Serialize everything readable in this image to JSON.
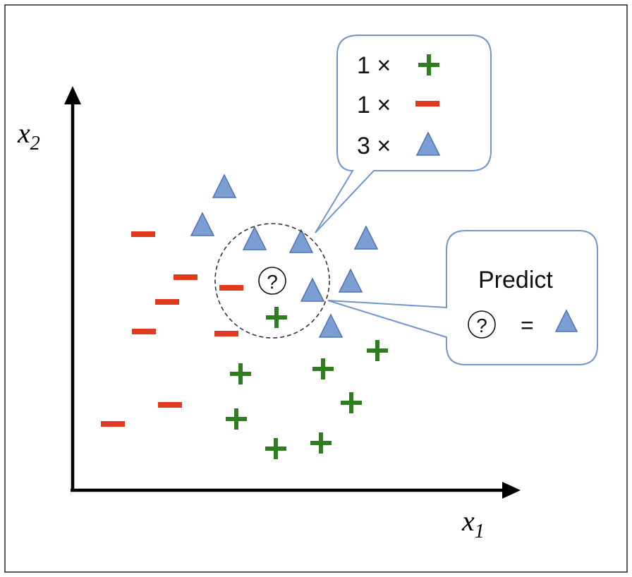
{
  "axes": {
    "x_label": "x",
    "x_subscript": "1",
    "y_label": "x",
    "y_subscript": "2"
  },
  "query_symbol": "?",
  "vote_callout": {
    "rows": [
      {
        "count": "1 ×",
        "symbol": "plus"
      },
      {
        "count": "1 ×",
        "symbol": "minus"
      },
      {
        "count": "3 ×",
        "symbol": "triangle"
      }
    ]
  },
  "predict_callout": {
    "title": "Predict",
    "equals": "="
  },
  "colors": {
    "plus": "#2e7d1f",
    "minus": "#e03a1e",
    "triangle_fill": "#7b9fd4",
    "triangle_stroke": "#4f73b0",
    "callout_border": "#6f95c9",
    "axis": "#000000"
  },
  "legend_symbols": [
    "plus-icon",
    "minus-icon",
    "triangle-icon"
  ]
}
